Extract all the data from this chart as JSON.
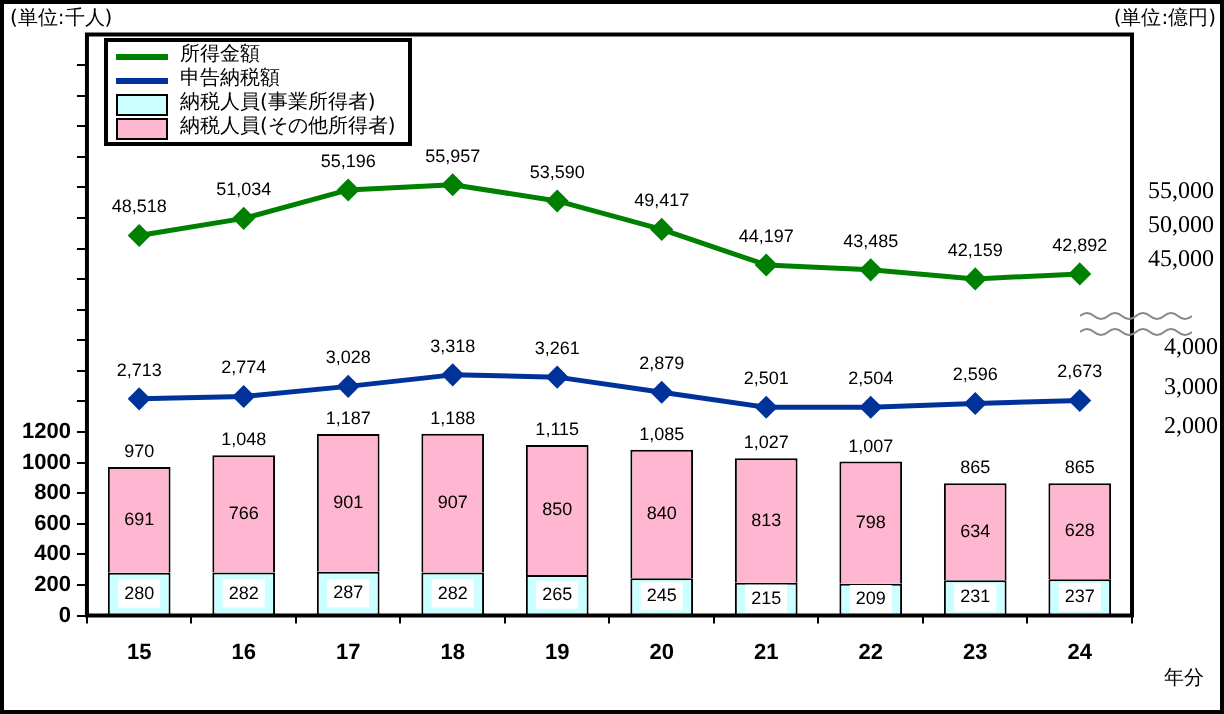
{
  "chart_data": {
    "type": "bar",
    "stacked": true,
    "categories": [
      "15",
      "16",
      "17",
      "18",
      "19",
      "20",
      "21",
      "22",
      "23",
      "24"
    ],
    "xlabel": "年分",
    "ylabel": "(単位:千人)",
    "y2label": "(単位:億円)",
    "series": [
      {
        "name": "所得金額",
        "type": "line",
        "axis": "y3",
        "color": "#008000",
        "values": [
          48518,
          51034,
          55196,
          55957,
          53590,
          49417,
          44197,
          43485,
          42159,
          42892
        ],
        "value_labels": [
          "48,518",
          "51,034",
          "55,196",
          "55,957",
          "53,590",
          "49,417",
          "44,197",
          "43,485",
          "42,159",
          "42,892"
        ]
      },
      {
        "name": "申告納税額",
        "type": "line",
        "axis": "y2",
        "color": "#003399",
        "values": [
          2713,
          2774,
          3028,
          3318,
          3261,
          2879,
          2501,
          2504,
          2596,
          2673
        ],
        "value_labels": [
          "2,713",
          "2,774",
          "3,028",
          "3,318",
          "3,261",
          "2,879",
          "2,501",
          "2,504",
          "2,596",
          "2,673"
        ]
      },
      {
        "name": "納税人員(事業所得者)",
        "color": "#ccffff",
        "values": [
          280,
          282,
          287,
          282,
          265,
          245,
          215,
          209,
          231,
          237
        ],
        "value_labels": [
          "280",
          "282",
          "287",
          "282",
          "265",
          "245",
          "215",
          "209",
          "231",
          "237"
        ]
      },
      {
        "name": "納税人員(その他所得者)",
        "color": "#ffb6d0",
        "values": [
          691,
          766,
          901,
          907,
          850,
          840,
          813,
          798,
          634,
          628
        ],
        "value_labels": [
          "691",
          "766",
          "901",
          "907",
          "850",
          "840",
          "813",
          "798",
          "634",
          "628"
        ]
      }
    ],
    "totals": [
      "970",
      "1,048",
      "1,187",
      "1,188",
      "1,115",
      "1,085",
      "1,027",
      "1,007",
      "865",
      "865"
    ],
    "legend": "top left",
    "marker": "diamond",
    "line_style": "solid",
    "ylim": [
      0,
      3800
    ],
    "yticks": [
      0,
      200,
      400,
      600,
      800,
      1000,
      1200,
      {
        "value": 1400,
        "label": null
      },
      {
        "value": 1600,
        "label": null
      },
      {
        "value": 1800,
        "label": null
      },
      {
        "value": 2000,
        "label": null
      },
      {
        "value": 2200,
        "label": null
      },
      {
        "value": 2400,
        "label": null
      },
      {
        "value": 2600,
        "label": null
      },
      {
        "value": 2800,
        "label": null
      },
      {
        "value": 3000,
        "label": null
      },
      {
        "value": 3200,
        "label": null
      },
      {
        "value": 3400,
        "label": null
      },
      {
        "value": 3600,
        "label": null
      }
    ],
    "y2lim": [
      -2750,
      11900
    ],
    "y2ticks": [
      {
        "value": 2000,
        "label": "2,000"
      },
      {
        "value": 3000,
        "label": "3,000"
      },
      {
        "value": 4000,
        "label": "4,000"
      }
    ],
    "y3lim": [
      -7200,
      78000
    ],
    "y3ticks": [
      {
        "value": 45000,
        "label": "45,000"
      },
      {
        "value": 50000,
        "label": "50,000"
      },
      {
        "value": 55000,
        "label": "55,000"
      }
    ]
  }
}
